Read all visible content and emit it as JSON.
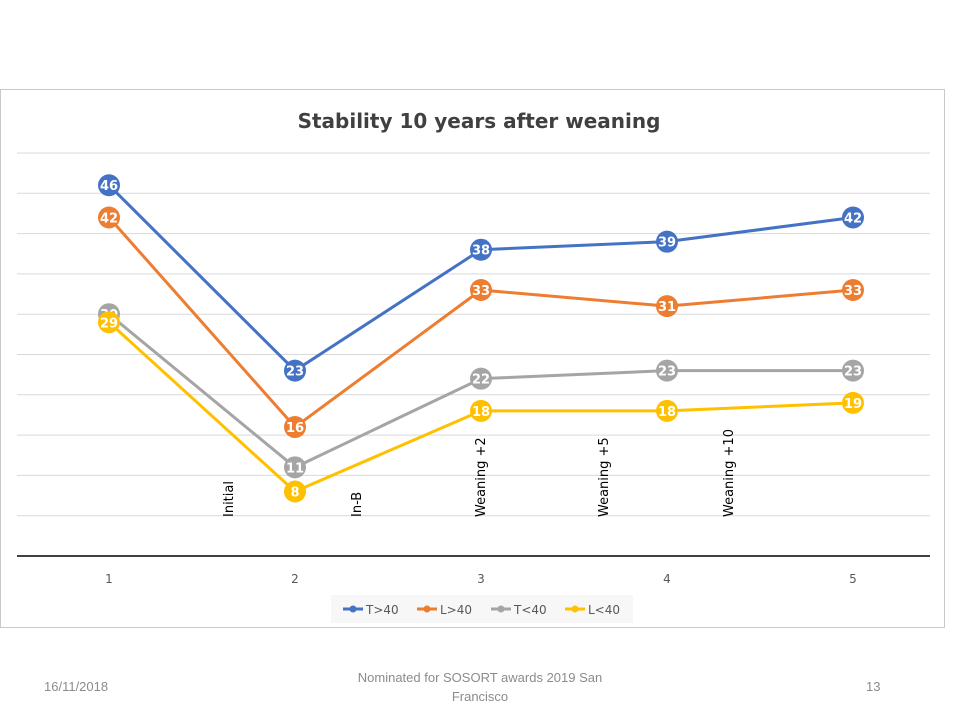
{
  "chart_data": {
    "type": "line",
    "title": "Stability 10 years after weaning",
    "xlabel": "",
    "ylabel": "",
    "categories": [
      "1",
      "2",
      "3",
      "4",
      "5"
    ],
    "ylim": [
      0,
      50
    ],
    "y_gridline_step": 5,
    "grid": true,
    "show_y_tick_labels": false,
    "legend_position": "bottom",
    "series": [
      {
        "name": "T>40",
        "color": "#4472c4",
        "values": [
          46,
          23,
          38,
          39,
          42
        ]
      },
      {
        "name": "L>40",
        "color": "#ed7d31",
        "values": [
          42,
          16,
          33,
          31,
          33
        ]
      },
      {
        "name": "T<40",
        "color": "#a5a5a5",
        "values": [
          30,
          11,
          22,
          23,
          23
        ]
      },
      {
        "name": "L<40",
        "color": "#ffc000",
        "values": [
          29,
          8,
          18,
          18,
          19
        ]
      }
    ],
    "annotations": [
      {
        "text": "Initial",
        "between": [
          1,
          2
        ],
        "rotation": "vertical"
      },
      {
        "text": "In-B",
        "between": [
          2,
          3
        ],
        "rotation": "vertical"
      },
      {
        "text": "Weaning +2",
        "at": 3,
        "rotation": "vertical"
      },
      {
        "text": "Weaning +5",
        "between": [
          3,
          4
        ],
        "rotation": "vertical"
      },
      {
        "text": "Weaning +10",
        "between": [
          4,
          5
        ],
        "rotation": "vertical"
      }
    ],
    "data_labels": "inside-markers"
  },
  "footer": {
    "date": "16/11/2018",
    "center_line1": "Nominated for SOSORT awards 2019 San",
    "center_line2": "Francisco",
    "page_number": "13"
  }
}
